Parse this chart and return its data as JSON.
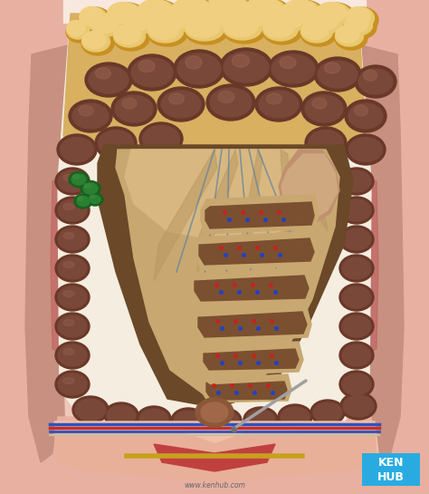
{
  "skin_pink": "#e8b0a0",
  "skin_light": "#f0c8b8",
  "skin_mid": "#d89878",
  "muscle_pink": "#d4a090",
  "muscle_stripe": "#c89080",
  "cavity_bg": "#f5e8d8",
  "fat_yellow": "#d4a830",
  "fat_orange": "#c89020",
  "fat_light": "#e8c870",
  "fat_bg": "#d8b060",
  "colon_dark": "#6a3828",
  "colon_mid": "#7a4838",
  "colon_light": "#8a5848",
  "colon_highlight": "#a06858",
  "mesentery_tan": "#c8a870",
  "mesentery_light": "#d8b880",
  "mesentery_dark": "#a88850",
  "mesentery_stripe": "#b89860",
  "si_outer": "#c8a870",
  "si_inner_dark": "#7a5030",
  "si_wall": "#d0b080",
  "vessel_red": "#cc2020",
  "vessel_blue": "#2040cc",
  "vessel_gray_blue": "#6080a0",
  "green_dark": "#1a6020",
  "green_mid": "#2a8030",
  "green_light": "#3a9040",
  "kenhub_blue": "#29abe2",
  "white": "#ffffff",
  "bottom_pink": "#e0a898",
  "bottom_red": "#c03030",
  "bottom_blue": "#3050c0",
  "bottom_yellow": "#c8a020",
  "needle_gray": "#a0a0a0",
  "watermark": "www.kenhub.com",
  "fig_width": 4.74,
  "fig_height": 5.45,
  "dpi": 100
}
